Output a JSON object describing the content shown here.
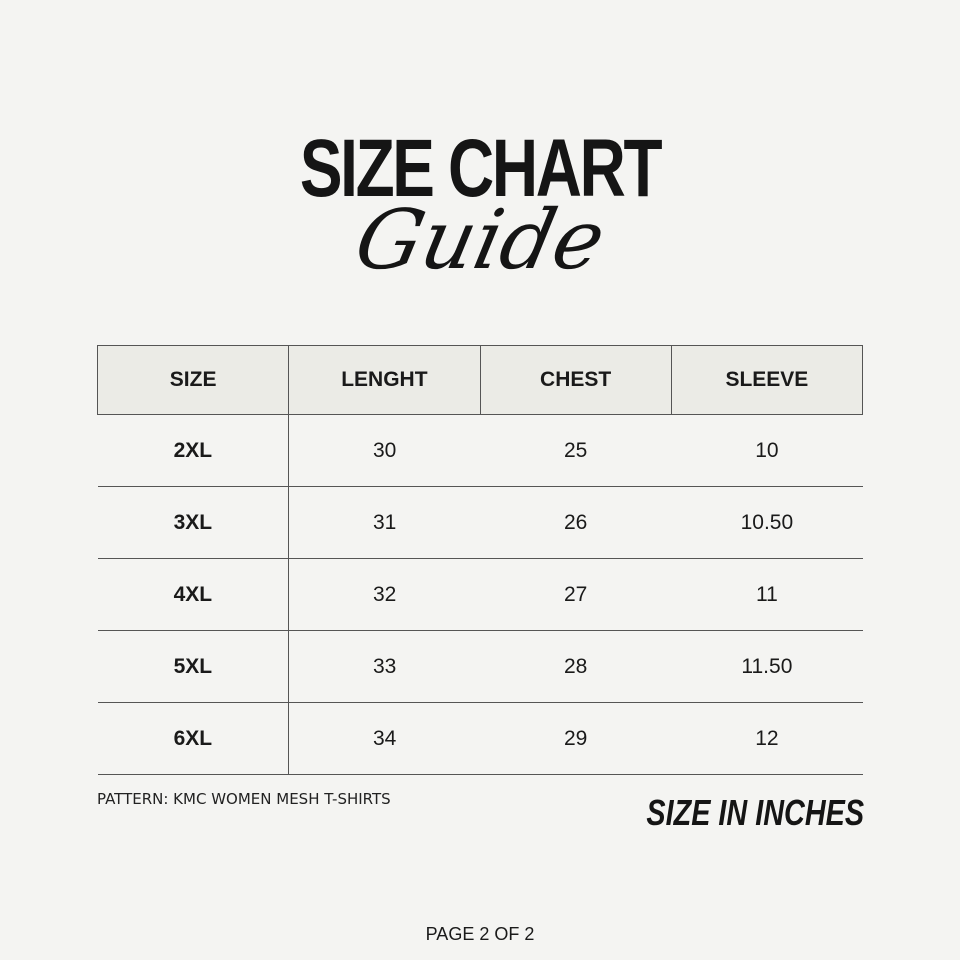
{
  "title": "SIZE CHART",
  "subtitle": "Guide",
  "table": {
    "headers": [
      "SIZE",
      "LENGHT",
      "CHEST",
      "SLEEVE"
    ],
    "rows": [
      [
        "2XL",
        "30",
        "25",
        "10"
      ],
      [
        "3XL",
        "31",
        "26",
        "10.50"
      ],
      [
        "4XL",
        "32",
        "27",
        "11"
      ],
      [
        "5XL",
        "33",
        "28",
        "11.50"
      ],
      [
        "6XL",
        "34",
        "29",
        "12"
      ]
    ]
  },
  "pattern": "PATTERN: KMC WOMEN MESH T-SHIRTS",
  "units": "SIZE IN INCHES",
  "page": "PAGE 2 OF 2"
}
